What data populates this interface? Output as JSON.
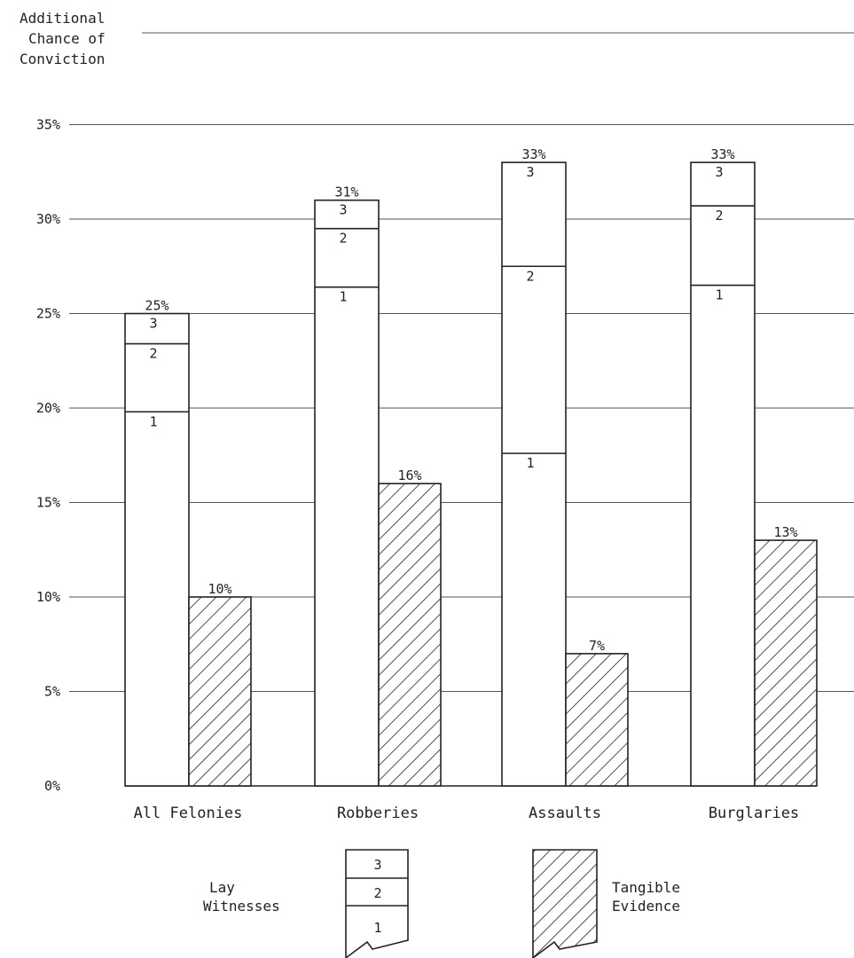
{
  "chart_data": {
    "type": "bar",
    "ylabel": "Additional\nChance of\nConviction",
    "ylim": [
      0,
      35
    ],
    "yticks": [
      0,
      5,
      10,
      15,
      20,
      25,
      30,
      35
    ],
    "ytick_suffix": "%",
    "grid": true,
    "categories": [
      "All Felonies",
      "Robberies",
      "Assaults",
      "Burglaries"
    ],
    "series": [
      {
        "name": "Lay Witnesses",
        "style": "stacked-open",
        "segment_labels": [
          "1",
          "2",
          "3"
        ],
        "segments": [
          [
            19.8,
            3.6,
            1.6
          ],
          [
            26.4,
            3.1,
            1.5
          ],
          [
            17.6,
            9.9,
            5.5
          ],
          [
            26.5,
            4.2,
            2.3
          ]
        ],
        "totals": [
          25,
          31,
          33,
          33
        ],
        "total_labels": [
          "25%",
          "31%",
          "33%",
          "33%"
        ]
      },
      {
        "name": "Tangible Evidence",
        "style": "hatched",
        "values": [
          10,
          16,
          7,
          13
        ],
        "value_labels": [
          "10%",
          "16%",
          "7%",
          "13%"
        ]
      }
    ],
    "legend": {
      "position": "bottom",
      "items": [
        {
          "label": "Lay\nWitnesses",
          "swatch": "stacked",
          "segment_labels": [
            "3",
            "2",
            "1"
          ]
        },
        {
          "label": "Tangible\nEvidence",
          "swatch": "hatched"
        }
      ]
    }
  }
}
